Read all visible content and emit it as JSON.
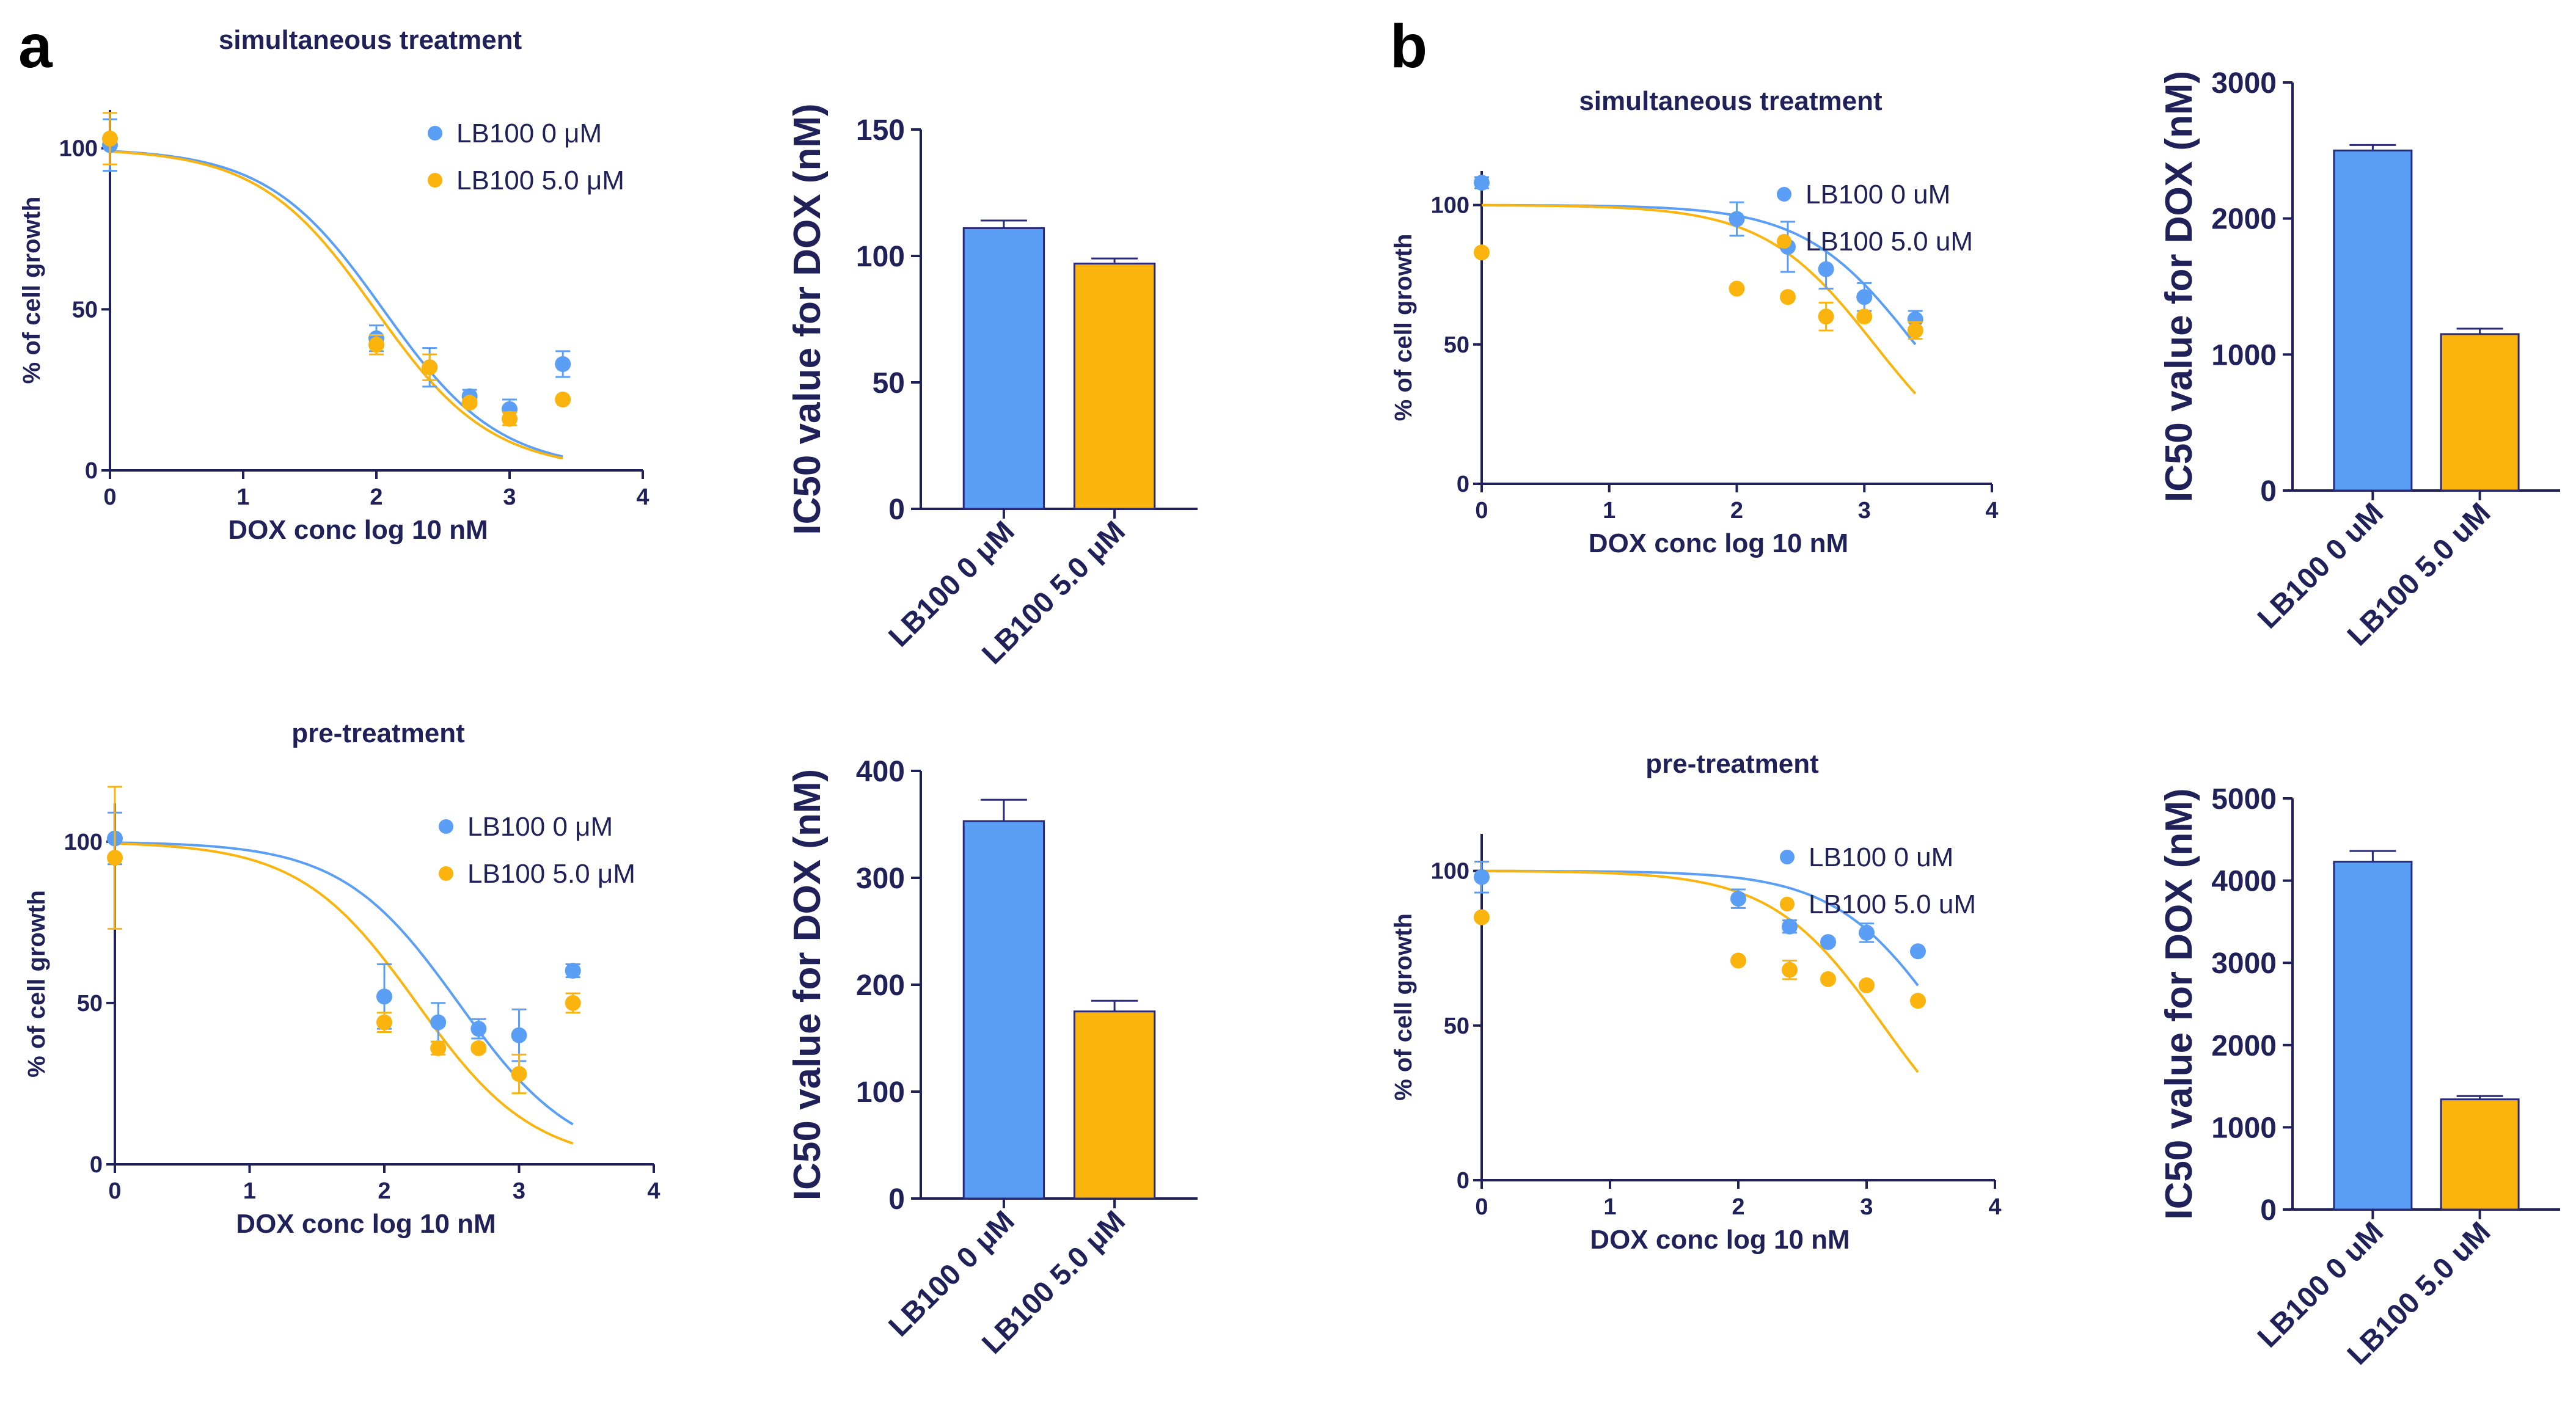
{
  "panels": [
    {
      "letter": "a"
    },
    {
      "letter": "b"
    }
  ],
  "colors": {
    "blue": "#5a9ff5",
    "orange": "#fbb40d",
    "axis": "#1f2158",
    "bar_edge": "#2a2a7a"
  },
  "chart_data": [
    {
      "type": "scatter",
      "panel": "a",
      "title": "simultaneous treatment",
      "xlabel": "DOX conc log 10 nM",
      "ylabel": "% of cell growth",
      "xlim": [
        0,
        4
      ],
      "ylim": [
        0,
        110
      ],
      "xticks": [
        0,
        1,
        2,
        3,
        4
      ],
      "yticks": [
        0,
        50,
        100
      ],
      "legend_position": "top-right",
      "series": [
        {
          "name": "LB100 0 μM",
          "color": "blue",
          "x": [
            0,
            2,
            2.4,
            2.7,
            3,
            3.4
          ],
          "y": [
            101,
            41,
            32,
            23,
            19,
            33
          ],
          "err": [
            8,
            4,
            6,
            2,
            3,
            4
          ],
          "fit": {
            "top": 100,
            "bottom": 0,
            "ic50_log": 2.05,
            "hill": 1.0
          }
        },
        {
          "name": "LB100 5.0 μM",
          "color": "orange",
          "x": [
            0,
            2,
            2.4,
            2.7,
            3,
            3.4
          ],
          "y": [
            103,
            39,
            32,
            21,
            16,
            22
          ],
          "err": [
            8,
            3,
            4,
            1,
            2,
            0
          ],
          "fit": {
            "top": 100,
            "bottom": 0,
            "ic50_log": 1.99,
            "hill": 1.0
          }
        }
      ]
    },
    {
      "type": "bar",
      "panel": "a",
      "ylabel": "IC50 value for DOX (nM)",
      "categories": [
        "LB100 0 μM",
        "LB100 5.0 μM"
      ],
      "values": [
        111,
        97
      ],
      "errors": [
        3,
        2
      ],
      "colors": [
        "blue",
        "orange"
      ],
      "ylim": [
        0,
        150
      ],
      "yticks": [
        0,
        50,
        100,
        150
      ]
    },
    {
      "type": "scatter",
      "panel": "a",
      "title": "pre-treatment",
      "xlabel": "DOX conc log 10 nM",
      "ylabel": "% of cell growth",
      "xlim": [
        0,
        4
      ],
      "ylim": [
        0,
        110
      ],
      "xticks": [
        0,
        1,
        2,
        3,
        4
      ],
      "yticks": [
        0,
        50,
        100
      ],
      "legend_position": "top-right",
      "series": [
        {
          "name": "LB100 0 μM",
          "color": "blue",
          "x": [
            0,
            2,
            2.4,
            2.7,
            3,
            3.4
          ],
          "y": [
            101,
            52,
            44,
            42,
            40,
            60
          ],
          "err": [
            8,
            10,
            6,
            3,
            8,
            2
          ],
          "fit": {
            "top": 100,
            "bottom": 0,
            "ic50_log": 2.55,
            "hill": 1.0
          }
        },
        {
          "name": "LB100 5.0 μM",
          "color": "orange",
          "x": [
            0,
            2,
            2.4,
            2.7,
            3,
            3.4
          ],
          "y": [
            95,
            44,
            36,
            36,
            28,
            50
          ],
          "err": [
            22,
            3,
            2,
            1,
            6,
            3
          ],
          "fit": {
            "top": 100,
            "bottom": 0,
            "ic50_log": 2.24,
            "hill": 1.0
          }
        }
      ]
    },
    {
      "type": "bar",
      "panel": "a",
      "ylabel": "IC50 value for DOX (nM)",
      "categories": [
        "LB100 0 μM",
        "LB100 5.0 μM"
      ],
      "values": [
        353,
        175
      ],
      "errors": [
        20,
        10
      ],
      "colors": [
        "blue",
        "orange"
      ],
      "ylim": [
        0,
        400
      ],
      "yticks": [
        0,
        100,
        200,
        300,
        400
      ]
    },
    {
      "type": "scatter",
      "panel": "b",
      "title": "simultaneous treatment",
      "xlabel": "DOX conc log 10 nM",
      "ylabel": "% of cell growth",
      "xlim": [
        0,
        4
      ],
      "ylim": [
        0,
        110
      ],
      "xticks": [
        0,
        1,
        2,
        3,
        4
      ],
      "yticks": [
        0,
        50,
        100
      ],
      "legend_position": "top-right",
      "series": [
        {
          "name": "LB100 0 uM",
          "color": "blue",
          "x": [
            0,
            2,
            2.4,
            2.7,
            3,
            3.4
          ],
          "y": [
            108,
            95,
            85,
            77,
            67,
            59
          ],
          "err": [
            2,
            6,
            9,
            7,
            5,
            3
          ],
          "fit": {
            "top": 100,
            "bottom": 0,
            "ic50_log": 3.4,
            "hill": 1.0
          }
        },
        {
          "name": "LB100 5.0 uM",
          "color": "orange",
          "x": [
            0,
            2,
            2.4,
            2.7,
            3,
            3.4
          ],
          "y": [
            83,
            70,
            67,
            60,
            60,
            55
          ],
          "err": [
            0,
            0,
            0,
            5,
            0,
            3
          ],
          "fit": {
            "top": 100,
            "bottom": 0,
            "ic50_log": 3.08,
            "hill": 1.0
          }
        }
      ]
    },
    {
      "type": "bar",
      "panel": "b",
      "ylabel": "IC50 value for DOX (nM)",
      "categories": [
        "LB100 0 uM",
        "LB100 5.0 uM"
      ],
      "values": [
        2500,
        1150
      ],
      "errors": [
        40,
        40
      ],
      "colors": [
        "blue",
        "orange"
      ],
      "ylim": [
        0,
        3000
      ],
      "yticks": [
        0,
        1000,
        2000,
        3000
      ]
    },
    {
      "type": "scatter",
      "panel": "b",
      "title": "pre-treatment",
      "xlabel": "DOX conc log 10 nM",
      "ylabel": "% of cell growth",
      "xlim": [
        0,
        4
      ],
      "ylim": [
        0,
        110
      ],
      "xticks": [
        0,
        1,
        2,
        3,
        4
      ],
      "yticks": [
        0,
        50,
        100
      ],
      "legend_position": "top-right",
      "series": [
        {
          "name": "LB100 0 uM",
          "color": "blue",
          "x": [
            0,
            2,
            2.4,
            2.7,
            3,
            3.4
          ],
          "y": [
            98,
            91,
            82,
            77,
            80,
            74
          ],
          "err": [
            5,
            3,
            2,
            1,
            3,
            0
          ],
          "fit": {
            "top": 100,
            "bottom": 0,
            "ic50_log": 3.63,
            "hill": 1.0
          }
        },
        {
          "name": "LB100 5.0 uM",
          "color": "orange",
          "x": [
            0,
            2,
            2.4,
            2.7,
            3,
            3.4
          ],
          "y": [
            85,
            71,
            68,
            65,
            63,
            58
          ],
          "err": [
            0,
            0,
            3,
            0,
            0,
            0
          ],
          "fit": {
            "top": 100,
            "bottom": 0,
            "ic50_log": 3.13,
            "hill": 1.0
          }
        }
      ]
    },
    {
      "type": "bar",
      "panel": "b",
      "ylabel": "IC50 value for DOX (nM)",
      "categories": [
        "LB100 0 uM",
        "LB100 5.0 uM"
      ],
      "values": [
        4230,
        1340
      ],
      "errors": [
        130,
        40
      ],
      "colors": [
        "blue",
        "orange"
      ],
      "ylim": [
        0,
        5000
      ],
      "yticks": [
        0,
        1000,
        2000,
        3000,
        4000,
        5000
      ]
    }
  ]
}
